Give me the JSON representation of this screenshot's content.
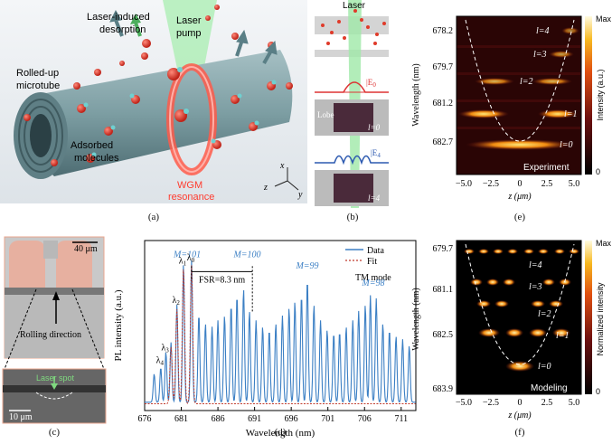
{
  "panel_a": {
    "caption": "(a)",
    "label_microtube": [
      "Rolled-up",
      "microtube"
    ],
    "label_desorption": [
      "Laser-induced",
      "desorption"
    ],
    "label_pump": [
      "Laser",
      "pump"
    ],
    "label_adsorbed": [
      "Adsorbed",
      "molecules"
    ],
    "label_wgm": [
      "WGM",
      "resonance"
    ],
    "axis_x": "x",
    "axis_y": "y",
    "axis_z": "z",
    "colors": {
      "tube": "#7d9ea3",
      "tube_dark": "#4e6d73",
      "molecule": "#e03a2a",
      "atom": "#6fd0d0",
      "ring": "#ff5a4a",
      "beam": "#8fe39a"
    }
  },
  "panel_b": {
    "caption": "(b)",
    "label_laser": "Laser",
    "label_e0": "|E",
    "label_e0_sub": "0",
    "label_e4": "|E",
    "label_e4_sub": "4",
    "label_lobe": "Lobe",
    "label_l0": "l=0",
    "label_l4": "l=4"
  },
  "panel_e": {
    "caption": "(e)",
    "tag": "Experiment",
    "ylabel": "Wavelength (nm)",
    "xlabel": "z (μm)",
    "cbar_label": "Intensity (a.u.)",
    "cbar_max": "Max",
    "cbar_min": "0",
    "yticks": [
      "678.2",
      "679.7",
      "681.2",
      "682.7"
    ],
    "xticks": [
      "−5.0",
      "−2.5",
      "0",
      "2.5",
      "5.0"
    ],
    "modes": [
      "l=4",
      "l=3",
      "l=2",
      "l=1",
      "l=0"
    ]
  },
  "panel_f": {
    "caption": "(f)",
    "tag": "Modeling",
    "ylabel": "Wavelength (nm)",
    "xlabel": "z (μm)",
    "cbar_label": "Normalized intensity",
    "cbar_max": "Max",
    "cbar_min": "0",
    "yticks": [
      "679.7",
      "681.1",
      "682.5",
      "683.9"
    ],
    "xticks": [
      "−5.0",
      "−2.5",
      "0",
      "2.5",
      "5.0"
    ],
    "modes": [
      "l=4",
      "l=3",
      "l=2",
      "l=1",
      "l=0"
    ]
  },
  "panel_c": {
    "caption": "(c)",
    "scale_top": "40 μm",
    "scale_bottom": "10 μm",
    "label_rolling": "Rolling direction",
    "label_spot": "Laser spot"
  },
  "panel_d": {
    "caption": "(d)",
    "legend_data": "Data",
    "legend_fit": "Fit",
    "mode_label": "TM mode",
    "fsr_label": "FSR=8.3 nm",
    "m_labels": [
      "M=101",
      "M=100",
      "M=99",
      "M=98"
    ],
    "lambda_labels": [
      "λ",
      "λ",
      "λ",
      "λ",
      "λ"
    ],
    "lambda_subs": [
      "0",
      "1",
      "2",
      "3",
      "4"
    ],
    "colors": {
      "data": "#3b7fc4",
      "fit": "#c0392b",
      "m_label": "#3b7fc4"
    }
  },
  "chart_data": {
    "type": "line",
    "title": "",
    "xlabel": "Wavelength (nm)",
    "ylabel": "PL intensity (a.u.)",
    "xlim": [
      676,
      713
    ],
    "xticks": [
      "676",
      "681",
      "686",
      "691",
      "696",
      "701",
      "706",
      "711"
    ],
    "series": [
      {
        "name": "Data",
        "peaks": [
          {
            "x": 677.3,
            "y": 0.18
          },
          {
            "x": 678.2,
            "y": 0.22
          },
          {
            "x": 678.9,
            "y": 0.32
          },
          {
            "x": 679.6,
            "y": 0.38
          },
          {
            "x": 680.4,
            "y": 0.62
          },
          {
            "x": 681.3,
            "y": 0.88
          },
          {
            "x": 682.4,
            "y": 0.9
          },
          {
            "x": 683.4,
            "y": 0.56
          },
          {
            "x": 684.3,
            "y": 0.5
          },
          {
            "x": 685.2,
            "y": 0.48
          },
          {
            "x": 686.0,
            "y": 0.52
          },
          {
            "x": 686.9,
            "y": 0.55
          },
          {
            "x": 687.8,
            "y": 0.62
          },
          {
            "x": 688.6,
            "y": 0.68
          },
          {
            "x": 689.5,
            "y": 0.72
          },
          {
            "x": 690.3,
            "y": 0.58
          },
          {
            "x": 691.2,
            "y": 0.52
          },
          {
            "x": 692.1,
            "y": 0.48
          },
          {
            "x": 693.0,
            "y": 0.46
          },
          {
            "x": 693.9,
            "y": 0.5
          },
          {
            "x": 694.8,
            "y": 0.55
          },
          {
            "x": 695.7,
            "y": 0.6
          },
          {
            "x": 696.5,
            "y": 0.64
          },
          {
            "x": 697.4,
            "y": 0.68
          },
          {
            "x": 698.2,
            "y": 0.78
          },
          {
            "x": 699.1,
            "y": 0.62
          },
          {
            "x": 700.0,
            "y": 0.52
          },
          {
            "x": 700.9,
            "y": 0.46
          },
          {
            "x": 701.8,
            "y": 0.44
          },
          {
            "x": 702.6,
            "y": 0.45
          },
          {
            "x": 703.5,
            "y": 0.48
          },
          {
            "x": 704.4,
            "y": 0.52
          },
          {
            "x": 705.2,
            "y": 0.58
          },
          {
            "x": 706.1,
            "y": 0.62
          },
          {
            "x": 706.8,
            "y": 0.68
          },
          {
            "x": 707.6,
            "y": 0.66
          },
          {
            "x": 708.5,
            "y": 0.5
          },
          {
            "x": 709.4,
            "y": 0.46
          },
          {
            "x": 710.3,
            "y": 0.42
          },
          {
            "x": 711.2,
            "y": 0.4
          },
          {
            "x": 712.1,
            "y": 0.36
          }
        ]
      },
      {
        "name": "Fit",
        "peaks": [
          {
            "x": 679.6,
            "y": 0.36
          },
          {
            "x": 680.4,
            "y": 0.6
          },
          {
            "x": 681.3,
            "y": 0.86
          },
          {
            "x": 682.4,
            "y": 0.88
          }
        ]
      }
    ],
    "annotations": [
      {
        "text": "M=101",
        "x": 681.8
      },
      {
        "text": "M=100",
        "x": 690.0
      },
      {
        "text": "M=99",
        "x": 698.2
      },
      {
        "text": "M=98",
        "x": 707.2
      },
      {
        "text": "FSR=8.3 nm",
        "x_from": 682.4,
        "x_to": 690.7
      }
    ]
  }
}
